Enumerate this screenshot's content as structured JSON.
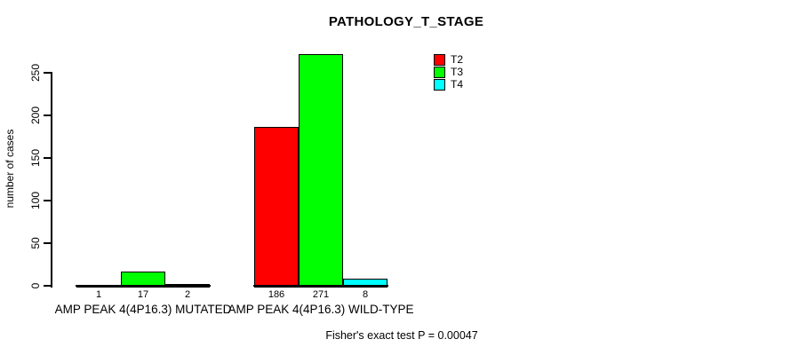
{
  "chart_data": {
    "type": "bar",
    "title": "PATHOLOGY_T_STAGE",
    "xlabel": "",
    "ylabel": "number of cases",
    "categories": [
      "AMP PEAK 4(4P16.3) MUTATED",
      "AMP PEAK 4(4P16.3) WILD-TYPE"
    ],
    "series": [
      {
        "name": "T2",
        "color": "#ff0000",
        "values": [
          1,
          186
        ]
      },
      {
        "name": "T3",
        "color": "#00ff00",
        "values": [
          17,
          271
        ]
      },
      {
        "name": "T4",
        "color": "#00ffff",
        "values": [
          2,
          8
        ]
      }
    ],
    "bar_value_labels": [
      [
        "1",
        "17",
        "2"
      ],
      [
        "186",
        "271",
        "8"
      ]
    ],
    "yticks": [
      "0",
      "50",
      "100",
      "150",
      "200",
      "250"
    ],
    "ylim": [
      0,
      250
    ],
    "grid": false,
    "legend_position": "top-right",
    "annotation": "Fisher's exact test P = 0.00047",
    "colors": {
      "background": "#ffffff",
      "axis": "#000000",
      "bar_border": "#000000",
      "text": "#000000"
    }
  }
}
